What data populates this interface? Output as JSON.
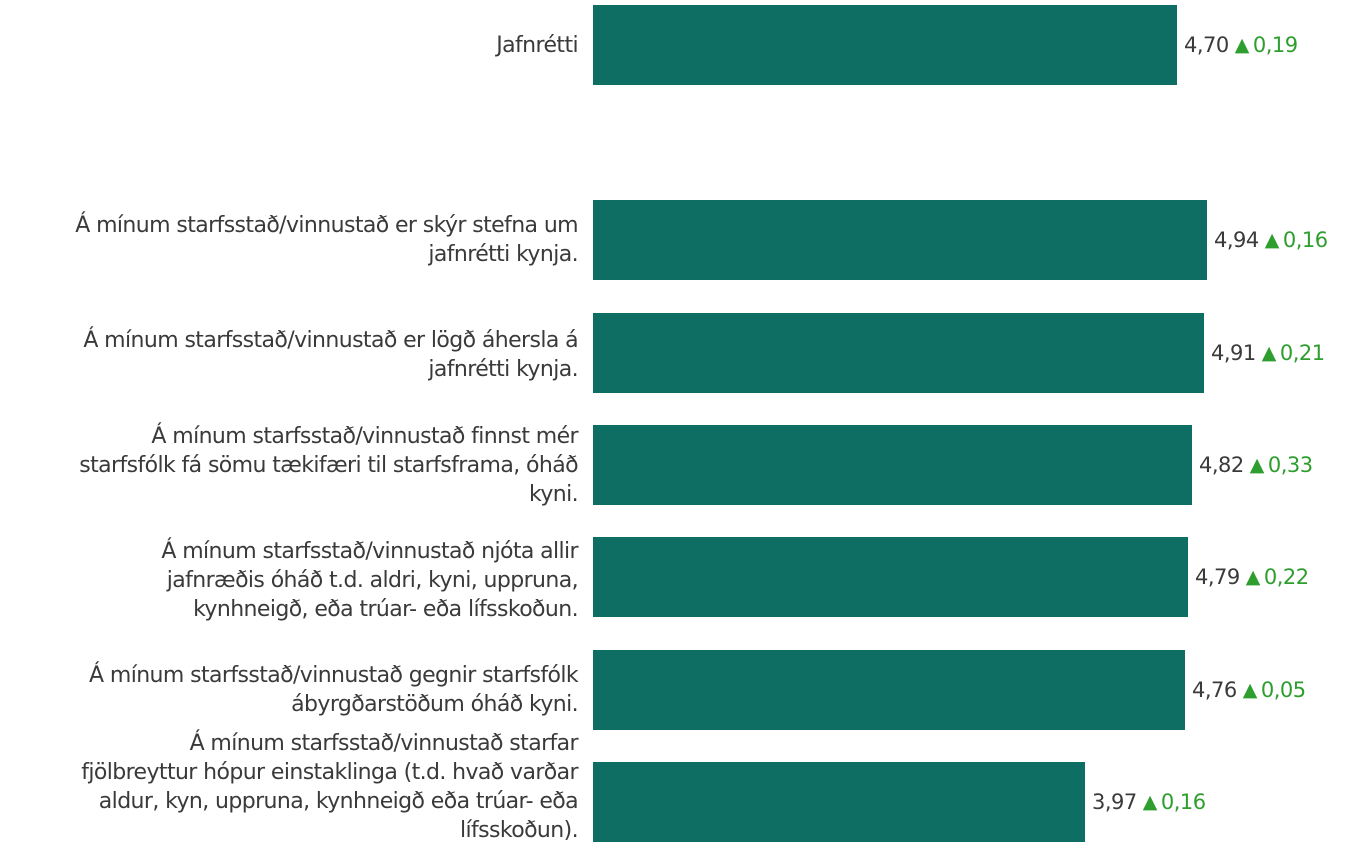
{
  "chart_data": {
    "type": "bar",
    "orientation": "horizontal",
    "categories": [
      "Jafnrétti",
      "Á mínum starfsstað/vinnustað er skýr stefna um jafnrétti kynja.",
      "Á mínum starfsstað/vinnustað er lögð áhersla á jafnrétti kynja.",
      "Á mínum starfsstað/vinnustað finnst mér starfsfólk fá sömu tækifæri til starfsframa, óháð kyni.",
      "Á mínum starfsstað/vinnustað njóta allir jafnræðis óháð t.d. aldri, kyni, uppruna, kynhneigð, eða trúar- eða lífsskoðun.",
      "Á mínum starfsstað/vinnustað gegnir starfsfólk ábyrgðarstöðum óháð kyni.",
      "Á mínum starfsstað/vinnustað starfar fjölbreyttur hópur einstaklinga (t.d. hvað varðar aldur, kyn, uppruna, kynhneigð eða trúar- eða lífsskoðun)."
    ],
    "label_lines": [
      [
        "Jafnrétti"
      ],
      [
        "Á mínum starfsstað/vinnustað er skýr stefna um",
        "jafnrétti kynja."
      ],
      [
        "Á mínum starfsstað/vinnustað er lögð áhersla á",
        "jafnrétti kynja."
      ],
      [
        "Á mínum starfsstað/vinnustað finnst mér",
        "starfsfólk fá sömu tækifæri til starfsframa, óháð",
        "kyni."
      ],
      [
        "Á mínum starfsstað/vinnustað njóta allir",
        "jafnræðis óháð t.d. aldri, kyni, uppruna,",
        "kynhneigð, eða trúar- eða lífsskoðun."
      ],
      [
        "Á mínum starfsstað/vinnustað gegnir starfsfólk",
        "ábyrgðarstöðum óháð kyni."
      ],
      [
        "Á mínum starfsstað/vinnustað starfar",
        "fjölbreyttur hópur einstaklinga (t.d. hvað varðar",
        "aldur, kyn, uppruna, kynhneigð eða trúar- eða",
        "lífsskoðun)."
      ]
    ],
    "values": [
      4.7,
      4.94,
      4.91,
      4.82,
      4.79,
      4.76,
      3.97
    ],
    "value_labels": [
      "4,70",
      "4,94",
      "4,91",
      "4,82",
      "4,79",
      "4,76",
      "3,97"
    ],
    "changes": [
      0.19,
      0.16,
      0.21,
      0.33,
      0.22,
      0.05,
      0.16
    ],
    "change_labels": [
      "0,19",
      "0,16",
      "0,21",
      "0,33",
      "0,22",
      "0,05",
      "0,16"
    ],
    "change_icon": "up-triangle-icon",
    "xlim": [
      0,
      5
    ],
    "grid": false,
    "colors": {
      "bar": "#0f6e63",
      "change": "#2e9e2e",
      "text": "#3a3a3a"
    }
  }
}
